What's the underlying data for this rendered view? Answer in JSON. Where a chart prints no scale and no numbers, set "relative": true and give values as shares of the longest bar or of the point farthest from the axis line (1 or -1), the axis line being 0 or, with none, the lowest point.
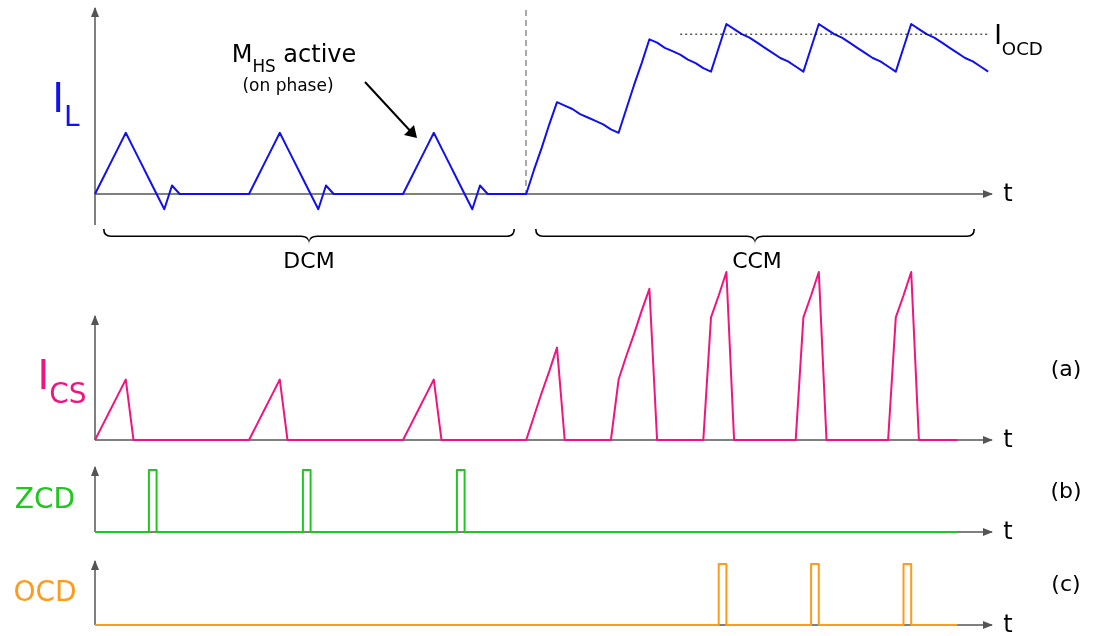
{
  "chart_data": [
    {
      "type": "line",
      "relative": true,
      "ylabel": "I$_{L}$",
      "xlabel": "t",
      "categories": [
        null,
        null,
        null,
        null,
        null,
        null,
        null,
        null,
        null,
        null,
        null,
        null,
        null,
        null,
        null,
        null,
        null,
        null,
        null,
        null,
        null,
        null,
        null,
        null,
        null,
        null,
        null,
        null,
        null,
        null,
        null,
        null,
        null,
        null,
        null,
        null,
        null,
        null,
        null,
        null,
        null,
        null,
        null,
        null,
        null,
        null,
        null,
        null,
        null,
        null,
        null,
        null,
        null,
        null,
        null,
        null,
        null,
        null,
        null,
        null,
        null,
        null,
        null,
        null,
        null,
        null,
        null,
        null,
        null,
        null,
        null,
        null,
        null,
        null,
        null,
        null,
        null,
        null,
        null,
        null,
        null,
        null,
        null,
        null,
        null,
        null,
        null,
        null,
        null,
        null,
        null,
        null,
        null,
        null,
        null,
        null,
        null,
        null,
        null,
        null,
        null,
        null,
        null,
        null,
        null,
        null,
        null,
        null,
        null,
        null,
        null,
        null,
        null,
        null,
        null,
        null,
        null
      ],
      "series": [
        {
          "color": "#1010f0",
          "values": [
            0,
            0.09,
            0.18,
            0.27,
            0.36,
            0.27,
            0.18,
            0.09,
            0,
            -0.09,
            0.05,
            0,
            0,
            0,
            0,
            0,
            0,
            0,
            0,
            0,
            0,
            0.09,
            0.18,
            0.27,
            0.36,
            0.27,
            0.18,
            0.09,
            0,
            -0.09,
            0.05,
            0,
            0,
            0,
            0,
            0,
            0,
            0,
            0,
            0,
            0,
            0.09,
            0.18,
            0.27,
            0.36,
            0.27,
            0.18,
            0.09,
            0,
            -0.09,
            0.05,
            0,
            0,
            0,
            0,
            0,
            0,
            0.14,
            0.27,
            0.41,
            0.54,
            0.52,
            0.5,
            0.47,
            0.45,
            0.43,
            0.41,
            0.38,
            0.36,
            0.5,
            0.64,
            0.77,
            0.91,
            0.89,
            0.86,
            0.84,
            0.82,
            0.79,
            0.77,
            0.74,
            0.72,
            0.86,
            1,
            0.97,
            0.94,
            0.92,
            0.89,
            0.86,
            0.83,
            0.8,
            0.78,
            0.75,
            0.72,
            0.86,
            1,
            0.97,
            0.94,
            0.92,
            0.89,
            0.86,
            0.83,
            0.8,
            0.78,
            0.75,
            0.72,
            0.86,
            1,
            0.97,
            0.94,
            0.92,
            0.89,
            0.86,
            0.83,
            0.8,
            0.78,
            0.75,
            0.72
          ]
        },
        {
          "name": "I$_{OCD}$",
          "line_style": "dotted",
          "color": "#000000",
          "values": [
            null,
            null,
            null,
            null,
            null,
            null,
            null,
            null,
            null,
            null,
            null,
            null,
            null,
            null,
            null,
            null,
            null,
            null,
            null,
            null,
            null,
            null,
            null,
            null,
            null,
            null,
            null,
            null,
            null,
            null,
            null,
            null,
            null,
            null,
            null,
            null,
            null,
            null,
            null,
            null,
            null,
            null,
            null,
            null,
            null,
            null,
            null,
            null,
            null,
            null,
            null,
            null,
            null,
            null,
            null,
            null,
            null,
            null,
            null,
            null,
            null,
            null,
            null,
            null,
            null,
            null,
            null,
            null,
            null,
            null,
            null,
            null,
            null,
            null,
            null,
            null,
            0.94,
            0.94,
            0.94,
            0.94,
            0.94,
            0.94,
            0.94,
            0.94,
            0.94,
            0.94,
            0.94,
            0.94,
            0.94,
            0.94,
            0.94,
            0.94,
            0.94,
            0.94,
            0.94,
            0.94,
            0.94,
            0.94,
            0.94,
            0.94,
            0.94,
            0.94,
            0.94,
            0.94,
            0.94,
            0.94,
            0.94,
            0.94,
            0.94,
            0.94,
            0.94,
            0.94,
            0.94,
            0.94,
            0.94,
            0.94,
            0.94
          ]
        }
      ],
      "annotations": [
        "M$_{HS}$ active",
        "(on phase)",
        "DCM",
        "CCM"
      ]
    },
    {
      "type": "line",
      "relative": true,
      "ylabel": "I$_{CS}$",
      "xlabel": "t",
      "categories": [
        null,
        null,
        null,
        null,
        null,
        null,
        null,
        null,
        null,
        null,
        null,
        null,
        null,
        null,
        null,
        null,
        null,
        null,
        null,
        null,
        null,
        null,
        null,
        null,
        null,
        null,
        null,
        null,
        null,
        null,
        null,
        null,
        null,
        null,
        null,
        null,
        null,
        null,
        null,
        null,
        null,
        null,
        null,
        null,
        null,
        null,
        null,
        null,
        null,
        null,
        null,
        null,
        null,
        null,
        null,
        null,
        null,
        null,
        null,
        null,
        null,
        null,
        null,
        null,
        null,
        null,
        null,
        null,
        null,
        null,
        null,
        null,
        null,
        null,
        null,
        null,
        null,
        null,
        null,
        null,
        null,
        null,
        null,
        null,
        null,
        null,
        null,
        null,
        null,
        null,
        null,
        null,
        null,
        null,
        null,
        null,
        null,
        null,
        null,
        null,
        null,
        null,
        null,
        null,
        null,
        null,
        null,
        null,
        null,
        null,
        null,
        null,
        null
      ],
      "series": [
        {
          "color": "#f0147f",
          "values": [
            0,
            0.09,
            0.18,
            0.27,
            0.36,
            0,
            0,
            0,
            0,
            0,
            0,
            0,
            0,
            0,
            0,
            0,
            0,
            0,
            0,
            0,
            0,
            0.09,
            0.18,
            0.27,
            0.36,
            0,
            0,
            0,
            0,
            0,
            0,
            0,
            0,
            0,
            0,
            0,
            0,
            0,
            0,
            0,
            0,
            0.09,
            0.18,
            0.27,
            0.36,
            0,
            0,
            0,
            0,
            0,
            0,
            0,
            0,
            0,
            0,
            0,
            0,
            0.14,
            0.28,
            0.41,
            0.55,
            0,
            0,
            0,
            0,
            0,
            0,
            0,
            0.36,
            0.5,
            0.63,
            0.77,
            0.9,
            0,
            0,
            0,
            0,
            0,
            0,
            0,
            0.73,
            0.86,
            1,
            0,
            0,
            0,
            0,
            0,
            0,
            0,
            0,
            0,
            0.73,
            0.86,
            1,
            0,
            0,
            0,
            0,
            0,
            0,
            0,
            0,
            0,
            0.73,
            0.86,
            1,
            0,
            0,
            0,
            0,
            0,
            0
          ]
        }
      ],
      "annotations": [
        "(a)"
      ]
    },
    {
      "type": "step",
      "relative": true,
      "ylabel": "ZCD",
      "xlabel": "t",
      "categories": [
        null,
        null,
        null,
        null,
        null,
        null,
        null,
        null,
        null,
        null,
        null,
        null,
        null,
        null,
        null,
        null,
        null,
        null,
        null,
        null,
        null,
        null,
        null,
        null,
        null,
        null,
        null,
        null,
        null,
        null,
        null,
        null,
        null,
        null,
        null,
        null,
        null,
        null,
        null,
        null,
        null,
        null,
        null,
        null,
        null,
        null,
        null,
        null,
        null,
        null,
        null,
        null,
        null,
        null,
        null,
        null,
        null,
        null,
        null,
        null,
        null,
        null,
        null,
        null,
        null,
        null,
        null,
        null,
        null,
        null,
        null,
        null,
        null,
        null,
        null,
        null,
        null,
        null,
        null,
        null,
        null,
        null,
        null,
        null,
        null,
        null,
        null,
        null,
        null,
        null,
        null,
        null,
        null,
        null,
        null,
        null,
        null,
        null,
        null,
        null,
        null,
        null,
        null,
        null,
        null,
        null,
        null,
        null,
        null,
        null,
        null,
        null,
        null
      ],
      "series": [
        {
          "color": "#1ec81e",
          "values": [
            0,
            0,
            0,
            0,
            0,
            0,
            0,
            1,
            0,
            0,
            0,
            0,
            0,
            0,
            0,
            0,
            0,
            0,
            0,
            0,
            0,
            0,
            0,
            0,
            0,
            0,
            0,
            1,
            0,
            0,
            0,
            0,
            0,
            0,
            0,
            0,
            0,
            0,
            0,
            0,
            0,
            0,
            0,
            0,
            0,
            0,
            0,
            1,
            0,
            0,
            0,
            0,
            0,
            0,
            0,
            0,
            0,
            0,
            0,
            0,
            0,
            0,
            0,
            0,
            0,
            0,
            0,
            0,
            0,
            0,
            0,
            0,
            0,
            0,
            0,
            0,
            0,
            0,
            0,
            0,
            0,
            0,
            0,
            0,
            0,
            0,
            0,
            0,
            0,
            0,
            0,
            0,
            0,
            0,
            0,
            0,
            0,
            0,
            0,
            0,
            0,
            0,
            0,
            0,
            0,
            0,
            0,
            0,
            0,
            0,
            0,
            0,
            0
          ]
        }
      ],
      "annotations": [
        "(b)"
      ]
    },
    {
      "type": "step",
      "relative": true,
      "ylabel": "OCD",
      "xlabel": "t",
      "categories": [
        null,
        null,
        null,
        null,
        null,
        null,
        null,
        null,
        null,
        null,
        null,
        null,
        null,
        null,
        null,
        null,
        null,
        null,
        null,
        null,
        null,
        null,
        null,
        null,
        null,
        null,
        null,
        null,
        null,
        null,
        null,
        null,
        null,
        null,
        null,
        null,
        null,
        null,
        null,
        null,
        null,
        null,
        null,
        null,
        null,
        null,
        null,
        null,
        null,
        null,
        null,
        null,
        null,
        null,
        null,
        null,
        null,
        null,
        null,
        null,
        null,
        null,
        null,
        null,
        null,
        null,
        null,
        null,
        null,
        null,
        null,
        null,
        null,
        null,
        null,
        null,
        null,
        null,
        null,
        null,
        null,
        null,
        null,
        null,
        null,
        null,
        null,
        null,
        null,
        null,
        null,
        null,
        null,
        null,
        null,
        null,
        null,
        null,
        null,
        null,
        null,
        null,
        null,
        null,
        null,
        null,
        null,
        null,
        null,
        null,
        null,
        null,
        null
      ],
      "series": [
        {
          "color": "#ff9a1a",
          "values": [
            0,
            0,
            0,
            0,
            0,
            0,
            0,
            0,
            0,
            0,
            0,
            0,
            0,
            0,
            0,
            0,
            0,
            0,
            0,
            0,
            0,
            0,
            0,
            0,
            0,
            0,
            0,
            0,
            0,
            0,
            0,
            0,
            0,
            0,
            0,
            0,
            0,
            0,
            0,
            0,
            0,
            0,
            0,
            0,
            0,
            0,
            0,
            0,
            0,
            0,
            0,
            0,
            0,
            0,
            0,
            0,
            0,
            0,
            0,
            0,
            0,
            0,
            0,
            0,
            0,
            0,
            0,
            0,
            0,
            0,
            0,
            0,
            0,
            0,
            0,
            0,
            0,
            0,
            0,
            0,
            0,
            1,
            0,
            0,
            0,
            0,
            0,
            0,
            0,
            0,
            0,
            0,
            0,
            1,
            0,
            0,
            0,
            0,
            0,
            0,
            0,
            0,
            0,
            0,
            0,
            1,
            0,
            0,
            0,
            0,
            0,
            0,
            0
          ]
        }
      ],
      "annotations": [
        "(c)"
      ]
    }
  ]
}
